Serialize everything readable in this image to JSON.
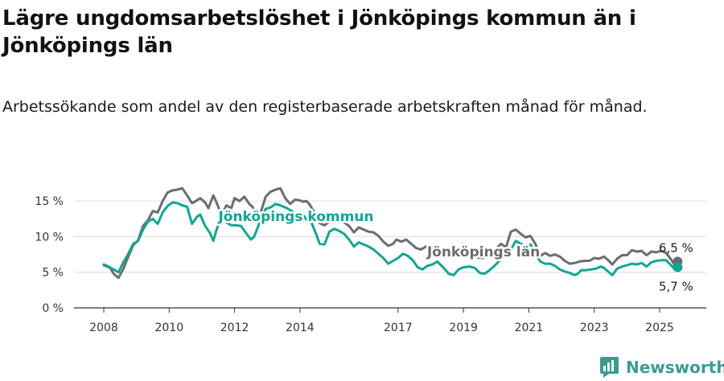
{
  "title": "Lägre ungdomsarbetslöshet i Jönköpings kommun än i Jönköpings län",
  "subtitle": "Arbetssökande som andel av den registerbaserade arbetskraften månad för månad.",
  "brand": {
    "name": "Newsworthy",
    "icon": "newsworthy-logo-icon"
  },
  "colors": {
    "kommun": "#12a593",
    "lan": "#6d6b70",
    "grid": "#dddddd",
    "axis": "#333333",
    "brand": "#3b9b90"
  },
  "chart_data": {
    "type": "line",
    "title": "Lägre ungdomsarbetslöshet i Jönköpings kommun än i Jönköpings län",
    "xlabel": "",
    "ylabel": "",
    "x_range": [
      2007.5,
      2026.1
    ],
    "ylim": [
      0,
      17.5
    ],
    "y_ticks": [
      0,
      5,
      10,
      15
    ],
    "y_tick_labels": [
      "0 %",
      "5 %",
      "10 %",
      "15 %"
    ],
    "x_ticks": [
      2008,
      2010,
      2012,
      2014,
      2017,
      2019,
      2021,
      2023,
      2025
    ],
    "x_tick_labels": [
      "2008",
      "2010",
      "2012",
      "2014",
      "2017",
      "2019",
      "2021",
      "2023",
      "2025"
    ],
    "grid": "horizontal",
    "series": [
      {
        "name": "Jönköpings län",
        "color": "#6d6b70",
        "label": "Jönköpings län",
        "end_label": "6,5 %",
        "points": [
          [
            2008.0,
            6.0
          ],
          [
            2008.1,
            5.8
          ],
          [
            2008.2,
            5.6
          ],
          [
            2008.3,
            4.8
          ],
          [
            2008.45,
            4.2
          ],
          [
            2008.6,
            5.5
          ],
          [
            2008.75,
            7.2
          ],
          [
            2008.9,
            8.8
          ],
          [
            2009.05,
            9.5
          ],
          [
            2009.2,
            11.5
          ],
          [
            2009.35,
            12.3
          ],
          [
            2009.5,
            13.6
          ],
          [
            2009.65,
            13.4
          ],
          [
            2009.8,
            15.0
          ],
          [
            2009.95,
            16.2
          ],
          [
            2010.1,
            16.5
          ],
          [
            2010.25,
            16.6
          ],
          [
            2010.4,
            16.8
          ],
          [
            2010.55,
            15.8
          ],
          [
            2010.7,
            14.7
          ],
          [
            2010.85,
            15.1
          ],
          [
            2010.95,
            15.4
          ],
          [
            2011.1,
            14.8
          ],
          [
            2011.2,
            14.0
          ],
          [
            2011.35,
            15.8
          ],
          [
            2011.45,
            14.8
          ],
          [
            2011.6,
            13.0
          ],
          [
            2011.75,
            14.4
          ],
          [
            2011.9,
            14.0
          ],
          [
            2012.0,
            15.4
          ],
          [
            2012.15,
            15.0
          ],
          [
            2012.3,
            15.6
          ],
          [
            2012.45,
            14.6
          ],
          [
            2012.55,
            14.2
          ],
          [
            2012.65,
            13.2
          ],
          [
            2012.8,
            13.4
          ],
          [
            2012.95,
            15.6
          ],
          [
            2013.1,
            16.3
          ],
          [
            2013.25,
            16.6
          ],
          [
            2013.4,
            16.8
          ],
          [
            2013.55,
            15.4
          ],
          [
            2013.7,
            14.6
          ],
          [
            2013.85,
            15.2
          ],
          [
            2014.0,
            15.1
          ],
          [
            2014.1,
            14.9
          ],
          [
            2014.2,
            15.0
          ],
          [
            2014.3,
            14.5
          ],
          [
            2014.45,
            13.3
          ],
          [
            2014.6,
            11.9
          ],
          [
            2014.75,
            11.6
          ],
          [
            2014.9,
            12.1
          ],
          [
            2015.05,
            12.5
          ],
          [
            2015.2,
            12.2
          ],
          [
            2015.35,
            12.0
          ],
          [
            2015.5,
            11.5
          ],
          [
            2015.65,
            10.6
          ],
          [
            2015.8,
            11.3
          ],
          [
            2015.95,
            11.0
          ],
          [
            2016.1,
            10.7
          ],
          [
            2016.25,
            10.6
          ],
          [
            2016.4,
            10.1
          ],
          [
            2016.55,
            9.3
          ],
          [
            2016.7,
            8.7
          ],
          [
            2016.85,
            9.0
          ],
          [
            2016.95,
            9.6
          ],
          [
            2017.1,
            9.3
          ],
          [
            2017.25,
            9.6
          ],
          [
            2017.4,
            9.0
          ],
          [
            2017.55,
            8.4
          ],
          [
            2017.7,
            8.2
          ],
          [
            2017.85,
            8.6
          ],
          [
            2018.0,
            8.3
          ],
          [
            2018.2,
            8.3
          ],
          [
            2018.4,
            8.0
          ],
          [
            2018.6,
            7.4
          ],
          [
            2018.8,
            7.3
          ],
          [
            2019.0,
            7.9
          ],
          [
            2019.2,
            7.5
          ],
          [
            2019.4,
            7.1
          ],
          [
            2019.6,
            7.0
          ],
          [
            2019.8,
            7.6
          ],
          [
            2020.0,
            8.3
          ],
          [
            2020.15,
            9.0
          ],
          [
            2020.3,
            8.5
          ],
          [
            2020.45,
            10.7
          ],
          [
            2020.6,
            11.0
          ],
          [
            2020.75,
            10.4
          ],
          [
            2020.9,
            9.9
          ],
          [
            2021.05,
            10.1
          ],
          [
            2021.2,
            9.0
          ],
          [
            2021.35,
            7.3
          ],
          [
            2021.5,
            7.7
          ],
          [
            2021.65,
            7.3
          ],
          [
            2021.8,
            7.5
          ],
          [
            2021.95,
            7.2
          ],
          [
            2022.1,
            6.6
          ],
          [
            2022.25,
            6.2
          ],
          [
            2022.4,
            6.3
          ],
          [
            2022.55,
            6.5
          ],
          [
            2022.7,
            6.6
          ],
          [
            2022.85,
            6.6
          ],
          [
            2023.0,
            7.0
          ],
          [
            2023.15,
            6.9
          ],
          [
            2023.3,
            7.2
          ],
          [
            2023.45,
            6.6
          ],
          [
            2023.55,
            6.1
          ],
          [
            2023.7,
            6.9
          ],
          [
            2023.85,
            7.4
          ],
          [
            2024.0,
            7.4
          ],
          [
            2024.15,
            8.1
          ],
          [
            2024.3,
            7.9
          ],
          [
            2024.45,
            8.0
          ],
          [
            2024.6,
            7.4
          ],
          [
            2024.75,
            7.9
          ],
          [
            2024.9,
            7.8
          ],
          [
            2025.05,
            8.0
          ],
          [
            2025.2,
            7.7
          ],
          [
            2025.35,
            6.8
          ],
          [
            2025.45,
            6.1
          ],
          [
            2025.55,
            6.5
          ]
        ]
      },
      {
        "name": "Jönköpings kommun",
        "color": "#12a593",
        "label": "Jönköpings kommun",
        "end_label": "5,7 %",
        "points": [
          [
            2008.0,
            6.1
          ],
          [
            2008.15,
            5.8
          ],
          [
            2008.3,
            5.4
          ],
          [
            2008.45,
            5.0
          ],
          [
            2008.6,
            6.4
          ],
          [
            2008.75,
            7.6
          ],
          [
            2008.9,
            9.0
          ],
          [
            2009.05,
            9.4
          ],
          [
            2009.2,
            11.0
          ],
          [
            2009.35,
            12.1
          ],
          [
            2009.5,
            12.5
          ],
          [
            2009.65,
            11.8
          ],
          [
            2009.8,
            13.4
          ],
          [
            2009.95,
            14.3
          ],
          [
            2010.1,
            14.8
          ],
          [
            2010.25,
            14.7
          ],
          [
            2010.4,
            14.4
          ],
          [
            2010.55,
            14.2
          ],
          [
            2010.7,
            11.8
          ],
          [
            2010.85,
            12.8
          ],
          [
            2010.95,
            13.1
          ],
          [
            2011.1,
            11.5
          ],
          [
            2011.25,
            10.5
          ],
          [
            2011.35,
            9.4
          ],
          [
            2011.45,
            11.0
          ],
          [
            2011.6,
            12.8
          ],
          [
            2011.75,
            12.0
          ],
          [
            2011.9,
            11.6
          ],
          [
            2012.05,
            11.6
          ],
          [
            2012.2,
            11.5
          ],
          [
            2012.35,
            10.5
          ],
          [
            2012.5,
            9.6
          ],
          [
            2012.6,
            10.0
          ],
          [
            2012.75,
            11.8
          ],
          [
            2012.95,
            13.9
          ],
          [
            2013.1,
            14.1
          ],
          [
            2013.25,
            14.6
          ],
          [
            2013.4,
            14.4
          ],
          [
            2013.6,
            14.0
          ],
          [
            2013.75,
            13.6
          ],
          [
            2013.9,
            13.1
          ],
          [
            2014.05,
            13.3
          ],
          [
            2014.2,
            12.4
          ],
          [
            2014.35,
            12.0
          ],
          [
            2014.5,
            10.3
          ],
          [
            2014.6,
            9.0
          ],
          [
            2014.75,
            8.9
          ],
          [
            2014.9,
            10.7
          ],
          [
            2015.05,
            11.1
          ],
          [
            2015.2,
            10.8
          ],
          [
            2015.35,
            10.4
          ],
          [
            2015.5,
            9.6
          ],
          [
            2015.65,
            8.6
          ],
          [
            2015.8,
            9.2
          ],
          [
            2015.95,
            8.9
          ],
          [
            2016.1,
            8.6
          ],
          [
            2016.25,
            8.2
          ],
          [
            2016.4,
            7.6
          ],
          [
            2016.55,
            7.0
          ],
          [
            2016.7,
            6.2
          ],
          [
            2016.85,
            6.6
          ],
          [
            2017.0,
            7.0
          ],
          [
            2017.15,
            7.6
          ],
          [
            2017.3,
            7.3
          ],
          [
            2017.45,
            6.7
          ],
          [
            2017.6,
            5.7
          ],
          [
            2017.75,
            5.4
          ],
          [
            2017.9,
            5.9
          ],
          [
            2018.05,
            6.1
          ],
          [
            2018.2,
            6.5
          ],
          [
            2018.4,
            5.6
          ],
          [
            2018.55,
            4.8
          ],
          [
            2018.7,
            4.6
          ],
          [
            2018.85,
            5.4
          ],
          [
            2019.0,
            5.7
          ],
          [
            2019.2,
            5.8
          ],
          [
            2019.35,
            5.6
          ],
          [
            2019.5,
            4.9
          ],
          [
            2019.65,
            4.8
          ],
          [
            2019.8,
            5.3
          ],
          [
            2019.95,
            5.9
          ],
          [
            2020.1,
            6.6
          ],
          [
            2020.3,
            7.6
          ],
          [
            2020.45,
            8.2
          ],
          [
            2020.6,
            9.4
          ],
          [
            2020.75,
            9.0
          ],
          [
            2020.9,
            8.6
          ],
          [
            2021.05,
            8.9
          ],
          [
            2021.2,
            7.7
          ],
          [
            2021.35,
            6.5
          ],
          [
            2021.5,
            6.2
          ],
          [
            2021.65,
            6.2
          ],
          [
            2021.8,
            5.9
          ],
          [
            2021.95,
            5.4
          ],
          [
            2022.1,
            5.1
          ],
          [
            2022.25,
            4.9
          ],
          [
            2022.4,
            4.6
          ],
          [
            2022.5,
            4.8
          ],
          [
            2022.6,
            5.3
          ],
          [
            2022.75,
            5.3
          ],
          [
            2022.9,
            5.4
          ],
          [
            2023.05,
            5.5
          ],
          [
            2023.2,
            5.8
          ],
          [
            2023.3,
            5.6
          ],
          [
            2023.45,
            5.0
          ],
          [
            2023.55,
            4.6
          ],
          [
            2023.7,
            5.5
          ],
          [
            2023.85,
            5.8
          ],
          [
            2024.0,
            6.0
          ],
          [
            2024.15,
            6.2
          ],
          [
            2024.3,
            6.1
          ],
          [
            2024.45,
            6.3
          ],
          [
            2024.6,
            5.8
          ],
          [
            2024.75,
            6.4
          ],
          [
            2024.9,
            6.6
          ],
          [
            2025.05,
            6.7
          ],
          [
            2025.2,
            6.7
          ],
          [
            2025.3,
            6.2
          ],
          [
            2025.45,
            5.5
          ],
          [
            2025.55,
            5.7
          ]
        ]
      }
    ]
  }
}
